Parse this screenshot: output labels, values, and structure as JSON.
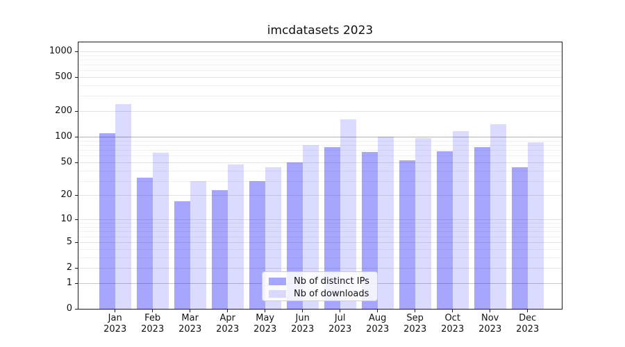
{
  "title": "imcdatasets 2023",
  "chart_data": {
    "type": "bar",
    "title": "imcdatasets 2023",
    "x_categories": [
      "Jan",
      "Feb",
      "Mar",
      "Apr",
      "May",
      "Jun",
      "Jul",
      "Aug",
      "Sep",
      "Oct",
      "Nov",
      "Dec"
    ],
    "x_year": "2023",
    "series": [
      {
        "name": "Nb of distinct IPs",
        "fill": "rgba(0,0,255,0.35)",
        "hex_on_white": "#a6a6ff",
        "values": [
          110,
          33,
          17,
          23,
          30,
          50,
          75,
          66,
          53,
          67,
          75,
          44
        ]
      },
      {
        "name": "Nb of downloads",
        "fill": "rgba(0,0,255,0.14)",
        "hex_on_white": "#d9d9ff",
        "values": [
          240,
          65,
          30,
          47,
          44,
          80,
          160,
          100,
          97,
          117,
          140,
          87
        ]
      }
    ],
    "y_scale": "log1p",
    "y_ticks": [
      0,
      1,
      2,
      5,
      10,
      20,
      50,
      100,
      200,
      500,
      1000
    ],
    "y_tick_labels": [
      "0",
      "1",
      "2",
      "5",
      "10",
      "20",
      "50",
      "100",
      "200",
      "500",
      "1000"
    ],
    "y_minor_gridlines": [
      3,
      4,
      6,
      7,
      8,
      9,
      30,
      40,
      60,
      70,
      80,
      90,
      300,
      400,
      600,
      700,
      800,
      900
    ],
    "ylim": [
      0,
      1270
    ],
    "grid": true,
    "legend_position": "lower center"
  },
  "legend": {
    "items": [
      {
        "label": "Nb of distinct IPs",
        "color": "#a6a6ff"
      },
      {
        "label": "Nb of downloads",
        "color": "#d9d9ff"
      }
    ]
  },
  "colors": {
    "grid_minor": "#f0f0f0",
    "grid_major": "#e2e2e2",
    "grid_decade_100": "#b2b2b2",
    "grid_decade_1": "#c6c6c6",
    "axis": "#1a1a1a",
    "text": "#111111"
  }
}
